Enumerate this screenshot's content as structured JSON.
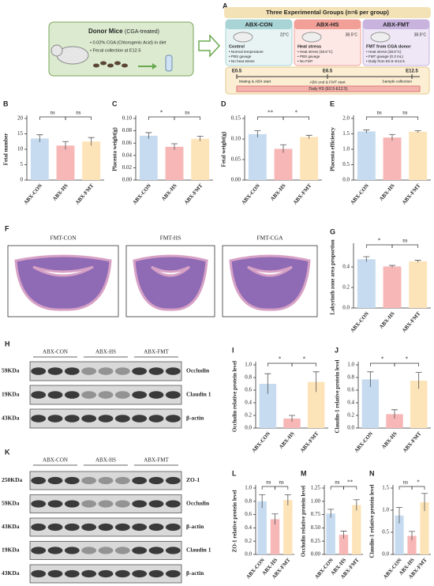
{
  "panel_a": {
    "label": "A",
    "donor": {
      "title": "Donor Mice",
      "subtitle": "(CGA-treated)",
      "bullets": [
        "• 0.02% CGA (Chlorogenic Acid) in diet",
        "• Fecal collection at E12.5"
      ]
    },
    "groups_title": "Three Experimental Groups (n=6 per group)",
    "groups": [
      {
        "name": "ABX-CON",
        "temp": "22°C",
        "heading": "Control",
        "bullets": [
          "• Normal temperature",
          "• PBS gavage",
          "• No heat stress"
        ]
      },
      {
        "name": "ABX-HS",
        "temp": "38.5°C",
        "heading": "Heat stress",
        "bullets": [
          "• Heat stress (38.5°C)",
          "• PBS gavage",
          "• No FMT"
        ]
      },
      {
        "name": "ABX-FMT",
        "temp": "38.5°C",
        "heading": "FMT from CGA donor",
        "bullets": [
          "• Heat stress (38.5°C)",
          "• FMT gavage (0.2 mL)",
          "• Daily from E0.5–E12.5"
        ]
      }
    ],
    "timeline": {
      "points": [
        "E0.5",
        "E6.5",
        "E12.5"
      ],
      "events": [
        "Mating & ABX start",
        "ABX end & FMT start",
        "Sample collection"
      ],
      "bar": "Daily HS (E0.5-E12.5)"
    }
  },
  "panel_f": {
    "label": "F",
    "images": [
      "FMT-CON",
      "FMT-HS",
      "FMT-CGA"
    ]
  },
  "blot_h": {
    "label": "H",
    "groups": [
      "ABX-CON",
      "ABX-HS",
      "ABX-FMT"
    ],
    "rows": [
      {
        "size": "59KDa",
        "protein": "Occludin"
      },
      {
        "size": "19KDa",
        "protein": "Claudin 1"
      },
      {
        "size": "43KDa",
        "protein": "β-actin"
      }
    ]
  },
  "blot_k": {
    "label": "K",
    "groups": [
      "ABX-CON",
      "ABX-HS",
      "ABX-FMT"
    ],
    "rows": [
      {
        "size": "250KDa",
        "protein": "ZO-1"
      },
      {
        "size": "59KDa",
        "protein": "Occludin"
      },
      {
        "size": "43KDa",
        "protein": "β-actin"
      },
      {
        "size": "19KDa",
        "protein": "Claudin 1"
      },
      {
        "size": "43KDa",
        "protein": "β-actin"
      }
    ]
  },
  "chart_data": [
    {
      "type": "bar",
      "panel": "B",
      "y_label": "Fetal number",
      "categories": [
        "ABX-CON",
        "ABX-HS",
        "ABX-FMT"
      ],
      "values": [
        13.5,
        11.2,
        12.5
      ],
      "errors": [
        1.2,
        1.3,
        1.3
      ],
      "colors": [
        "#c6dbf0",
        "#f7b7b7",
        "#fde4b8"
      ],
      "ylim": [
        0,
        20
      ],
      "yticks": [
        0,
        5,
        10,
        15,
        20
      ],
      "annotations": [
        "ns",
        "ns"
      ]
    },
    {
      "type": "bar",
      "panel": "C",
      "y_label": "Placenta weight(g)",
      "categories": [
        "ABX-CON",
        "ABX-HS",
        "ABX-FMT"
      ],
      "values": [
        0.072,
        0.054,
        0.067
      ],
      "errors": [
        0.005,
        0.005,
        0.004
      ],
      "colors": [
        "#c6dbf0",
        "#f7b7b7",
        "#fde4b8"
      ],
      "ylim": [
        0,
        0.1
      ],
      "yticks": [
        {
          "value": 0,
          "label": "0.00"
        },
        0.02,
        0.04,
        0.06,
        0.08,
        {
          "value": 0.1,
          "label": "0.10"
        }
      ],
      "annotations": [
        "*",
        "ns"
      ]
    },
    {
      "type": "bar",
      "panel": "D",
      "y_label": "Fetal weight(g)",
      "categories": [
        "ABX-CON",
        "ABX-HS",
        "ABX-FMT"
      ],
      "values": [
        0.112,
        0.076,
        0.105
      ],
      "errors": [
        0.008,
        0.01,
        0.004
      ],
      "colors": [
        "#c6dbf0",
        "#f7b7b7",
        "#fde4b8"
      ],
      "ylim": [
        0,
        0.15
      ],
      "yticks": [
        {
          "value": 0,
          "label": "0.00"
        },
        0.05,
        {
          "value": 0.1,
          "label": "0.10"
        },
        0.15
      ],
      "annotations": [
        "**",
        "*"
      ]
    },
    {
      "type": "bar",
      "panel": "E",
      "y_label": "Placenta efficiency",
      "categories": [
        "ABX-CON",
        "ABX-HS",
        "ABX-FMT"
      ],
      "values": [
        1.58,
        1.38,
        1.57
      ],
      "errors": [
        0.05,
        0.1,
        0.03
      ],
      "colors": [
        "#c6dbf0",
        "#f7b7b7",
        "#fde4b8"
      ],
      "ylim": [
        0,
        2
      ],
      "yticks": [
        {
          "value": 0,
          "label": "0.0"
        },
        0.5,
        {
          "value": 1,
          "label": "1.0"
        },
        1.5,
        {
          "value": 2,
          "label": "2.0"
        }
      ],
      "annotations": [
        "ns",
        "ns"
      ]
    },
    {
      "type": "bar",
      "panel": "G",
      "y_label": "Labyrinth zone area proportion",
      "categories": [
        "ABX-CON",
        "ABX-HS",
        "ABX-FMT"
      ],
      "values": [
        0.475,
        0.405,
        0.455
      ],
      "errors": [
        0.025,
        0.01,
        0.01
      ],
      "colors": [
        "#c6dbf0",
        "#f7b7b7",
        "#fde4b8"
      ],
      "ylim": [
        0,
        0.6
      ],
      "yticks": [
        {
          "value": 0,
          "label": "0.0"
        },
        0.2,
        0.4
      ],
      "annotations": [
        "*",
        "ns"
      ]
    },
    {
      "type": "bar",
      "panel": "I",
      "y_label": "Occludin relative protein level",
      "categories": [
        "ABX-CON",
        "ABX-HS",
        "ABX-FMT"
      ],
      "values": [
        0.7,
        0.15,
        0.73
      ],
      "errors": [
        0.16,
        0.05,
        0.16
      ],
      "colors": [
        "#c6dbf0",
        "#f7b7b7",
        "#fde4b8"
      ],
      "ylim": [
        0,
        1
      ],
      "yticks": [
        {
          "value": 0,
          "label": "0.0"
        },
        0.2,
        0.4,
        0.6,
        0.8,
        {
          "value": 1,
          "label": "1.0"
        }
      ],
      "annotations": [
        "*",
        "*"
      ]
    },
    {
      "type": "bar",
      "panel": "J",
      "y_label": "Claudin-1 relative protein level",
      "categories": [
        "ABX-CON",
        "ABX-HS",
        "ABX-FMT"
      ],
      "values": [
        0.77,
        0.22,
        0.75
      ],
      "errors": [
        0.12,
        0.07,
        0.13
      ],
      "colors": [
        "#c6dbf0",
        "#f7b7b7",
        "#fde4b8"
      ],
      "ylim": [
        0,
        1
      ],
      "yticks": [
        {
          "value": 0,
          "label": "0.0"
        },
        0.2,
        0.4,
        0.6,
        0.8,
        {
          "value": 1,
          "label": "1.0"
        }
      ],
      "annotations": [
        "*",
        "*"
      ]
    },
    {
      "type": "bar",
      "panel": "L",
      "y_label": "ZO-1 relative protein level",
      "categories": [
        "ABX-CON",
        "ABX-HS",
        "ABX-FMT"
      ],
      "values": [
        0.8,
        0.53,
        0.82
      ],
      "errors": [
        0.1,
        0.08,
        0.08
      ],
      "colors": [
        "#c6dbf0",
        "#f7b7b7",
        "#fde4b8"
      ],
      "ylim": [
        0,
        1
      ],
      "yticks": [
        {
          "value": 0,
          "label": "0.0"
        },
        0.2,
        0.4,
        0.6,
        0.8,
        {
          "value": 1,
          "label": "1.0"
        }
      ],
      "annotations": [
        "ns",
        "ns"
      ]
    },
    {
      "type": "bar",
      "panel": "M",
      "y_label": "Occludin relative protein level",
      "categories": [
        "ABX-CON",
        "ABX-HS",
        "ABX-FMT"
      ],
      "values": [
        0.77,
        0.37,
        0.93
      ],
      "errors": [
        0.08,
        0.07,
        0.1
      ],
      "colors": [
        "#c6dbf0",
        "#f7b7b7",
        "#fde4b8"
      ],
      "ylim": [
        0,
        1.25
      ],
      "yticks": [
        {
          "value": 0,
          "label": "0.00"
        },
        0.25,
        {
          "value": 0.5,
          "label": "0.50"
        },
        0.75,
        {
          "value": 1,
          "label": "1.00"
        },
        1.25
      ],
      "annotations": [
        "ns",
        "**"
      ]
    },
    {
      "type": "bar",
      "panel": "N",
      "y_label": "Claudin-1 relative protein level",
      "categories": [
        "ABX-CON",
        "ABX-HS",
        "ABX-FMT"
      ],
      "values": [
        0.88,
        0.42,
        1.18
      ],
      "errors": [
        0.18,
        0.1,
        0.2
      ],
      "colors": [
        "#c6dbf0",
        "#f7b7b7",
        "#fde4b8"
      ],
      "ylim": [
        0,
        1.5
      ],
      "yticks": [
        {
          "value": 0,
          "label": "0.0"
        },
        0.5,
        {
          "value": 1,
          "label": "1.0"
        },
        1.5
      ],
      "annotations": [
        "ns",
        "*"
      ]
    }
  ]
}
